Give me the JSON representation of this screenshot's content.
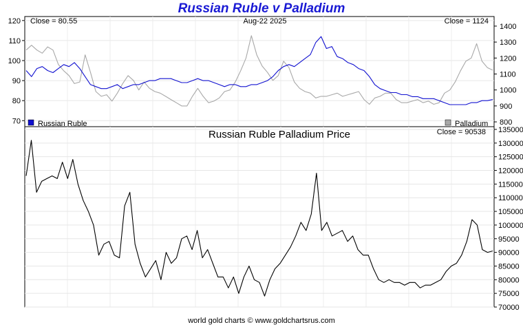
{
  "header": {
    "title": "Russian Ruble v Palladium"
  },
  "footer": {
    "text": "world gold charts © www.goldchartsrus.com"
  },
  "colors": {
    "ruble": "#1010d0",
    "palladium": "#a8a8a8",
    "ratio": "#000000",
    "title": "#1a1ad4"
  },
  "chart_data": [
    {
      "type": "line",
      "annotations": {
        "left_close": "Close = 80.55",
        "date": "Aug-22  2025",
        "right_close": "Close = 1124"
      },
      "left_axis": {
        "ylim": [
          67,
          122
        ],
        "ticks": [
          "70",
          "80",
          "90",
          "100",
          "110",
          "120"
        ]
      },
      "right_axis": {
        "ylim": [
          770,
          1460
        ],
        "ticks": [
          "800",
          "900",
          "1000",
          "1100",
          "1200",
          "1300",
          "1400"
        ]
      },
      "legend": {
        "left": "Russian Ruble",
        "right": "Palladium"
      },
      "series": [
        {
          "name": "Russian Ruble",
          "axis": "left",
          "values": [
            95,
            92,
            96,
            97,
            95,
            94,
            96,
            98,
            97,
            99,
            96,
            92,
            88,
            87,
            86,
            86,
            87,
            88,
            86,
            87,
            88,
            88,
            89,
            90,
            90,
            91,
            91,
            91,
            90,
            89,
            89,
            90,
            91,
            90,
            90,
            89,
            88,
            87,
            88,
            88,
            87,
            87,
            88,
            88,
            89,
            90,
            92,
            95,
            97,
            98,
            97,
            99,
            101,
            103,
            109,
            112,
            106,
            107,
            102,
            101,
            99,
            98,
            96,
            95,
            92,
            88,
            86,
            85,
            84,
            84,
            83,
            83,
            82,
            82,
            81,
            81,
            81,
            80,
            79,
            78,
            78,
            78,
            78,
            79,
            79,
            80,
            80,
            80.55
          ]
        },
        {
          "name": "Palladium",
          "axis": "right",
          "values": [
            1250,
            1280,
            1250,
            1230,
            1270,
            1250,
            1160,
            1120,
            1090,
            1040,
            1050,
            1220,
            1110,
            990,
            960,
            970,
            930,
            980,
            1040,
            1090,
            1060,
            1000,
            1050,
            1010,
            990,
            980,
            960,
            940,
            920,
            900,
            900,
            960,
            1010,
            960,
            920,
            930,
            950,
            990,
            1000,
            1050,
            1120,
            1200,
            1340,
            1220,
            1150,
            1110,
            1060,
            1090,
            1180,
            1140,
            1050,
            1010,
            990,
            980,
            950,
            960,
            960,
            970,
            980,
            960,
            970,
            980,
            990,
            940,
            910,
            950,
            960,
            980,
            980,
            940,
            920,
            920,
            930,
            940,
            920,
            930,
            910,
            920,
            980,
            1000,
            1050,
            1120,
            1180,
            1200,
            1290,
            1180,
            1140,
            1124
          ]
        }
      ]
    },
    {
      "type": "line",
      "title": "Russian Ruble Palladium Price",
      "annotations": {
        "right_close": "Close = 90538"
      },
      "ylim": [
        70000,
        136000
      ],
      "ticks": [
        "70000",
        "75000",
        "80000",
        "85000",
        "90000",
        "95000",
        "100000",
        "105000",
        "110000",
        "115000",
        "120000",
        "125000",
        "130000",
        "135000"
      ],
      "series": [
        {
          "name": "Russian Ruble Palladium Price",
          "values": [
            118000,
            131000,
            112000,
            116000,
            117000,
            118000,
            117000,
            123000,
            117000,
            124000,
            115000,
            109000,
            105000,
            100000,
            89000,
            93000,
            94000,
            89000,
            88000,
            107000,
            112000,
            93000,
            86000,
            81000,
            84000,
            87000,
            80000,
            90000,
            86000,
            88000,
            95000,
            96000,
            91000,
            98000,
            88000,
            91000,
            86000,
            81000,
            81000,
            77000,
            81000,
            75000,
            81000,
            85000,
            80000,
            79000,
            74000,
            80000,
            84000,
            86000,
            89000,
            92000,
            96000,
            101000,
            98000,
            104000,
            119000,
            98000,
            101000,
            96000,
            97000,
            98000,
            94000,
            96000,
            91000,
            89000,
            89000,
            84000,
            80000,
            79000,
            80000,
            79000,
            79000,
            78000,
            79000,
            79000,
            77000,
            78000,
            78000,
            79000,
            80000,
            83000,
            85000,
            86000,
            89000,
            94000,
            102000,
            100000,
            91000,
            90000,
            90538
          ]
        }
      ]
    }
  ]
}
